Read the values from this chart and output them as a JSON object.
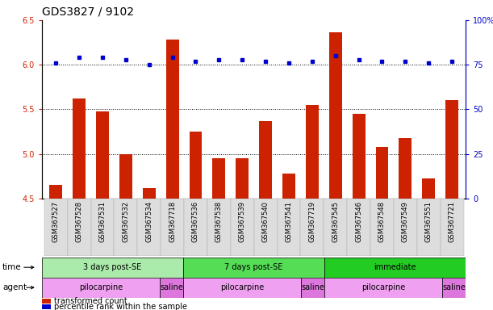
{
  "title": "GDS3827 / 9102",
  "samples": [
    "GSM367527",
    "GSM367528",
    "GSM367531",
    "GSM367532",
    "GSM367534",
    "GSM367718",
    "GSM367536",
    "GSM367538",
    "GSM367539",
    "GSM367540",
    "GSM367541",
    "GSM367719",
    "GSM367545",
    "GSM367546",
    "GSM367548",
    "GSM367549",
    "GSM367551",
    "GSM367721"
  ],
  "red_values": [
    4.65,
    5.62,
    5.48,
    5.0,
    4.62,
    6.28,
    5.25,
    4.95,
    4.95,
    5.37,
    4.78,
    5.55,
    6.36,
    5.45,
    5.08,
    5.18,
    4.72,
    5.6
  ],
  "blue_pct": [
    76,
    79,
    79,
    78,
    75,
    79,
    77,
    78,
    78,
    77,
    76,
    77,
    80,
    78,
    77,
    77,
    76,
    77
  ],
  "ylim_left": [
    4.5,
    6.5
  ],
  "ylim_right": [
    0,
    100
  ],
  "yticks_left": [
    4.5,
    5.0,
    5.5,
    6.0,
    6.5
  ],
  "yticks_right": [
    0,
    25,
    50,
    75,
    100
  ],
  "groups_time": [
    {
      "label": "3 days post-SE",
      "start": 0,
      "end": 5,
      "color": "#aaeaaa"
    },
    {
      "label": "7 days post-SE",
      "start": 6,
      "end": 11,
      "color": "#55dd55"
    },
    {
      "label": "immediate",
      "start": 12,
      "end": 17,
      "color": "#22cc22"
    }
  ],
  "groups_agent": [
    {
      "label": "pilocarpine",
      "start": 0,
      "end": 4,
      "color": "#f0a0f0"
    },
    {
      "label": "saline",
      "start": 5,
      "end": 5,
      "color": "#dd77dd"
    },
    {
      "label": "pilocarpine",
      "start": 6,
      "end": 10,
      "color": "#f0a0f0"
    },
    {
      "label": "saline",
      "start": 11,
      "end": 11,
      "color": "#dd77dd"
    },
    {
      "label": "pilocarpine",
      "start": 12,
      "end": 16,
      "color": "#f0a0f0"
    },
    {
      "label": "saline",
      "start": 17,
      "end": 17,
      "color": "#dd77dd"
    }
  ],
  "red_color": "#cc2200",
  "blue_color": "#0000cc",
  "bar_width": 0.55,
  "base_value": 4.5,
  "bg_color": "#ffffff",
  "tick_label_fontsize": 6,
  "title_fontsize": 10
}
